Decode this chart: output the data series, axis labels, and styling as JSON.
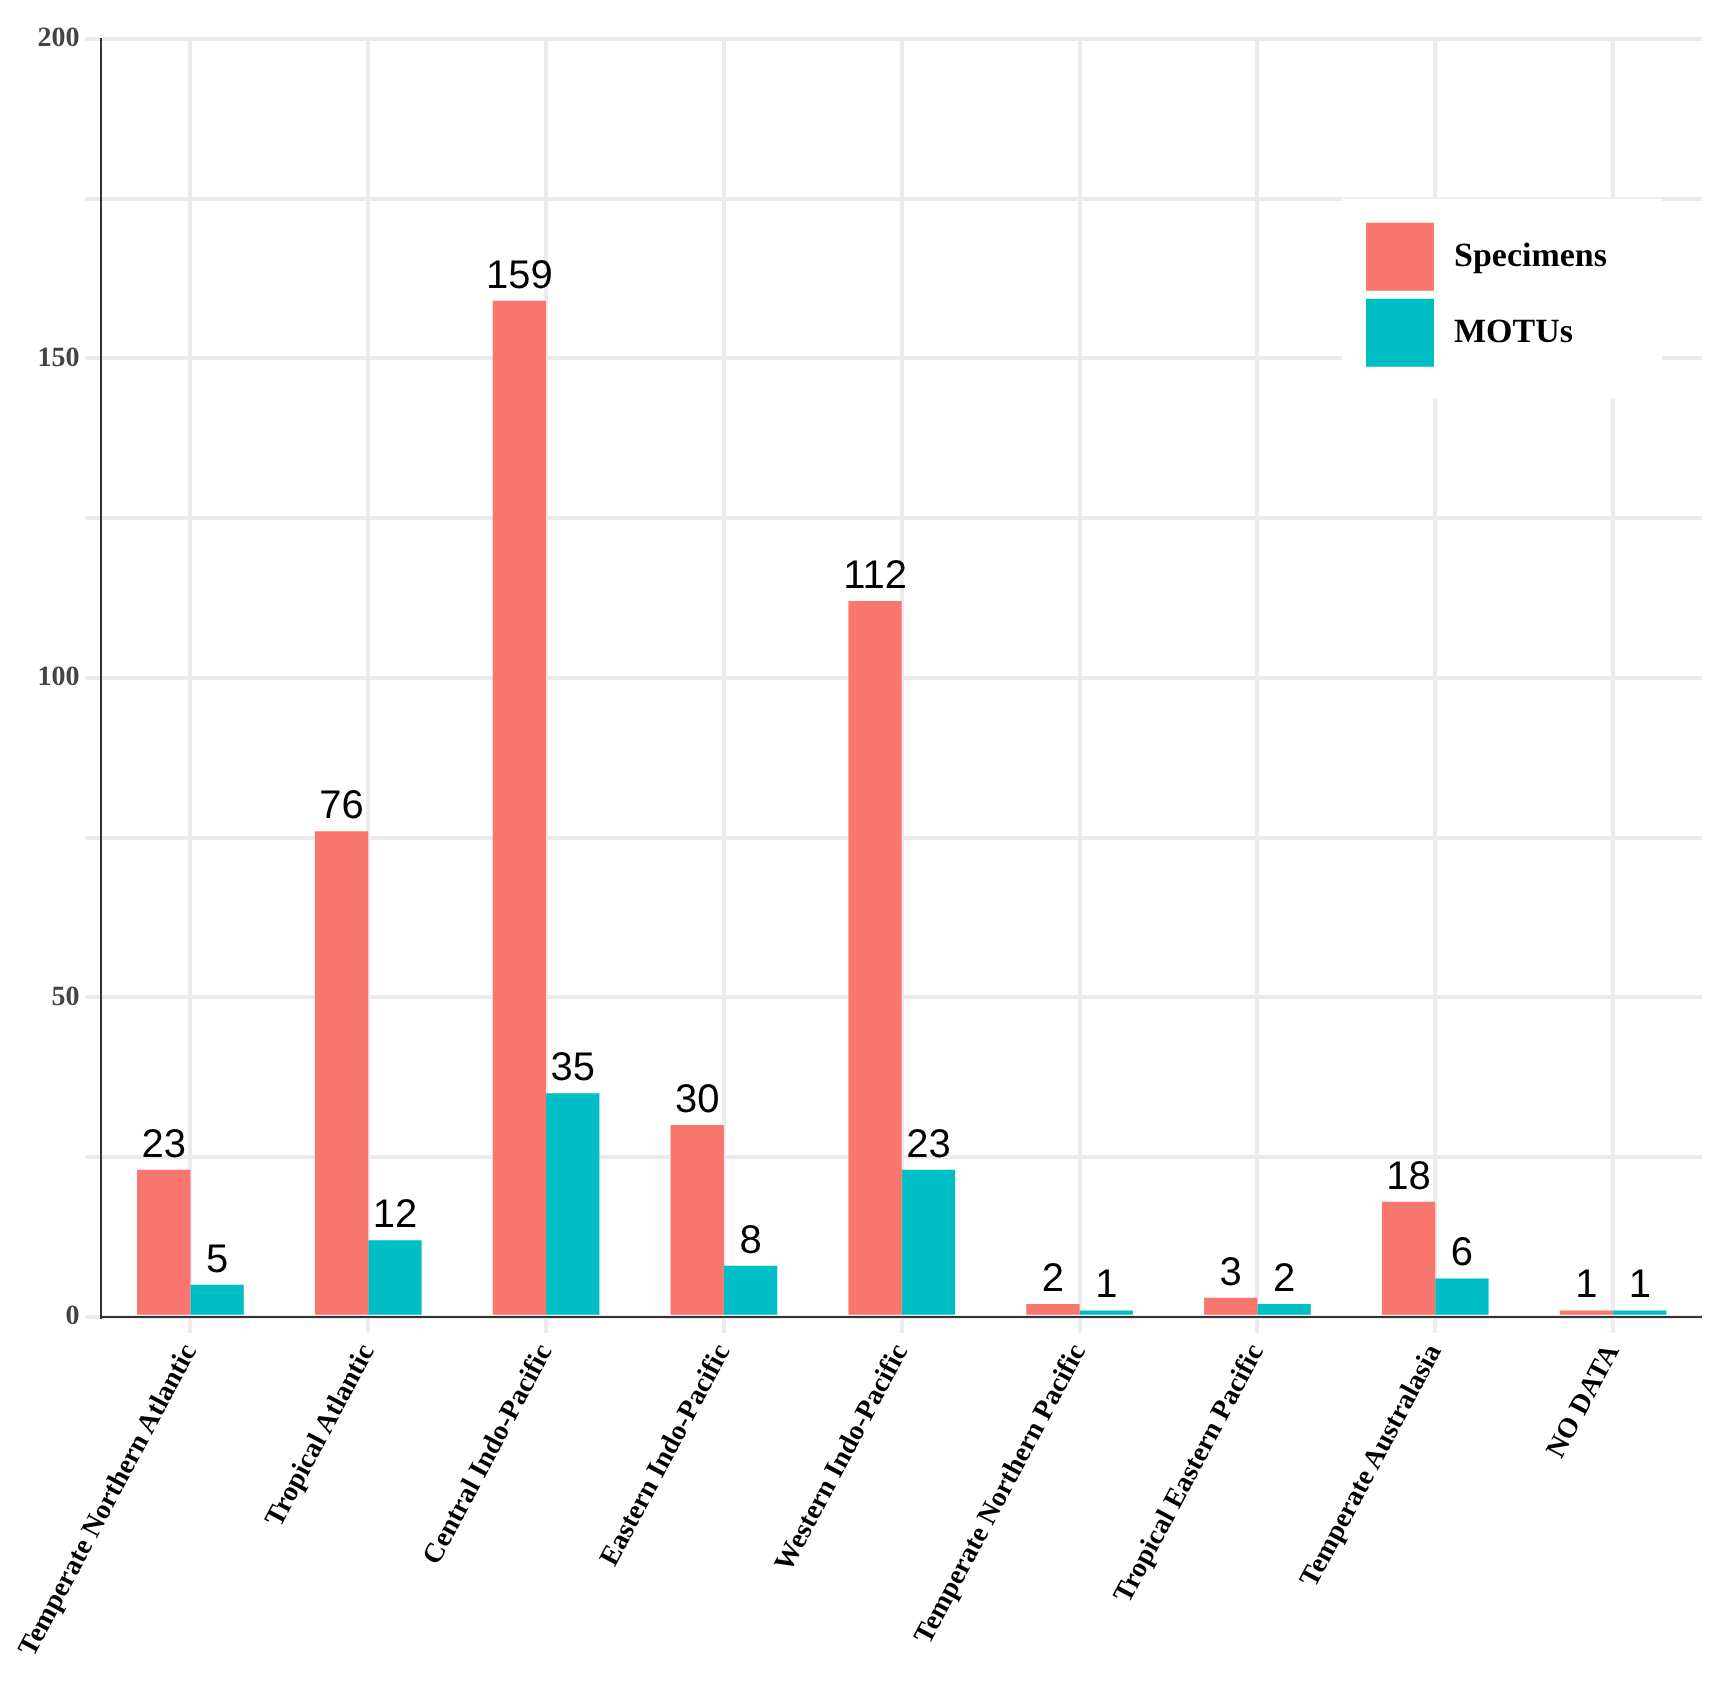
{
  "chart_data": {
    "type": "bar",
    "categories": [
      "Temperate Northern Atlantic",
      "Tropical Atlantic",
      "Central Indo-Pacific",
      "Eastern Indo-Pacific",
      "Western Indo-Pacific",
      "Temperate Northern Pacific",
      "Tropical Eastern Pacific",
      "Temperate Australasia",
      "NO DATA"
    ],
    "series": [
      {
        "name": "Specimens",
        "color": "#f8766d",
        "values": [
          23,
          76,
          159,
          30,
          112,
          2,
          3,
          18,
          1
        ]
      },
      {
        "name": "MOTUs",
        "color": "#00bfc4",
        "values": [
          5,
          12,
          35,
          8,
          23,
          1,
          2,
          6,
          1
        ]
      }
    ],
    "ylim": [
      0,
      200
    ],
    "yticks": [
      0,
      {
        "value": 25,
        "label": null
      },
      50,
      {
        "value": 75,
        "label": null
      },
      100,
      {
        "value": 125,
        "label": null
      },
      150,
      {
        "value": 175,
        "label": null
      },
      200
    ],
    "grid": true,
    "legend": "top right",
    "data_labels": true
  }
}
